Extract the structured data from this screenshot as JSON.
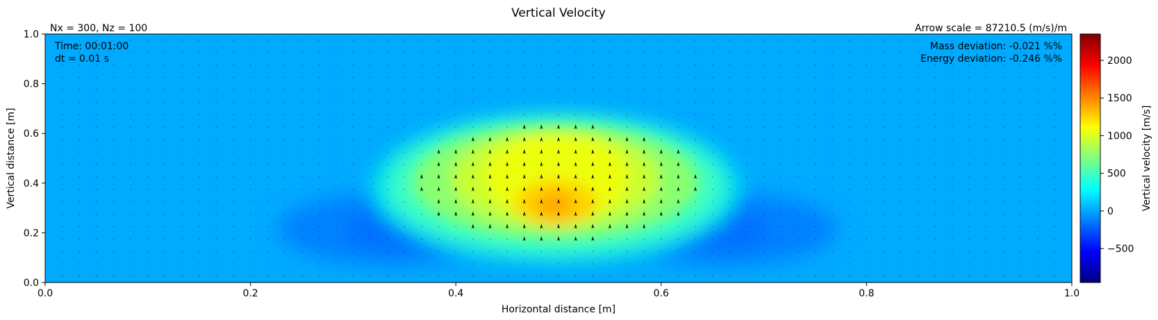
{
  "chart_data": {
    "type": "heatmap",
    "title": "Vertical Velocity",
    "xlabel": "Horizontal distance [m]",
    "ylabel": "Vertical distance [m]",
    "xlim": [
      0.0,
      1.0
    ],
    "ylim": [
      0.0,
      1.0
    ],
    "xticks": [
      "0.0",
      "0.2",
      "0.4",
      "0.6",
      "0.8",
      "1.0"
    ],
    "yticks": [
      "0.0",
      "0.2",
      "0.4",
      "0.6",
      "0.8",
      "1.0"
    ],
    "colorbar": {
      "label": "Vertical velocity [m/s]",
      "range": [
        -950,
        2350
      ],
      "ticks": [
        "−500",
        "0",
        "500",
        "1000",
        "1500",
        "2000"
      ],
      "tick_values": [
        -500,
        0,
        500,
        1000,
        1500,
        2000
      ],
      "colormap": "jet"
    },
    "annotations": {
      "grid_info": "Nx = 300, Nz = 100",
      "arrow_scale": "Arrow scale = 87210.5 (m/s)/m",
      "time": "Time: 00:01:00",
      "dt": "dt = 0.01 s",
      "mass_deviation": "Mass deviation: -0.021 %%",
      "energy_deviation": "Energy deviation: -0.246 %%"
    },
    "field_features": [
      {
        "kind": "updraft_peak",
        "x": 0.5,
        "z": 0.32,
        "value": 1450
      },
      {
        "kind": "updraft_plateau",
        "x": 0.5,
        "z": 0.45,
        "value": 950
      },
      {
        "kind": "downdraft",
        "x": 0.35,
        "z": 0.21,
        "value": -260
      },
      {
        "kind": "downdraft",
        "x": 0.65,
        "z": 0.21,
        "value": -260
      }
    ],
    "background_value": 0,
    "grid": false
  }
}
